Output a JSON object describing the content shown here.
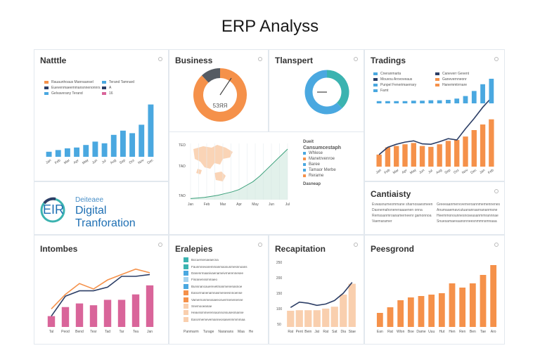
{
  "page": {
    "title": "ERP Analyss"
  },
  "colors": {
    "blue": "#4aa8e0",
    "orange": "#f5914a",
    "pink": "#d9659a",
    "peach": "#f9cfae",
    "navy": "#2c3e66",
    "teal": "#3bb3b0",
    "dark": "#555b63"
  },
  "panels": {
    "nattle": {
      "title": "Natttle",
      "legend": [
        "Rauaunhoaus Mannaansel",
        "Euevenmaeemmansnnenonnrs",
        "Gelvaverany Terand"
      ],
      "legend_right": [
        "Terand Tamnard",
        "A",
        "16"
      ]
    },
    "business": {
      "title": "Business",
      "center_label": "5ЗЯЯ"
    },
    "transport": {
      "title": "Tlanspert"
    },
    "trading": {
      "title": "Tradings",
      "legend_left": [
        "Cneranmarta",
        "Mouvou Arovoveaus",
        "Punpel Fenerimaerrary",
        "Famt"
      ],
      "legend_right": [
        "Caneverr Gevent",
        "Ganevernneonr",
        "Hanemmtrrnare"
      ]
    },
    "map": {
      "tick_labels": [
        "TED",
        "TAD",
        "TAD"
      ],
      "x_labels": [
        "Jan",
        "Feb",
        "Mar",
        "Apr",
        "May",
        "Jun",
        "Jul"
      ],
      "side_title_1": "Dueit",
      "side_title_2": "Cansumcestaph",
      "side_items": [
        "Whlese",
        "Manetrvenroe",
        "Baree",
        "Tamaor Merbe",
        "Rerame"
      ],
      "side_footer": "Dasneap"
    },
    "erp_logo": {
      "mark": "EIR",
      "sub_small": "Deiteaee",
      "sub_big": "Digital Tranforation"
    },
    "continuity": {
      "title": "Cantiaisty",
      "text_left": [
        "Evwasnumeommane sharnosaesmeen",
        "Dasnemahonerenaaaenen onna",
        "Remssanmroanamerneenr gamonnoa",
        "Vaemaramer"
      ],
      "text_right": [
        "Greeeaanmenvverneroannmemennenes",
        "Anumaaemavcutuananraarnananmsne",
        "Heemmonounnesnoseasanmmrannnae",
        "Snuesamaevaanonneesnmmnsmnaaa"
      ]
    },
    "incomes": {
      "title": "Intombes"
    },
    "employees": {
      "title": "Eralepies",
      "rows": [
        "Bocuersenaeaecna",
        "Faunmnevaremmanmaosusrnesnnoans",
        "Danenrmaanivaenameivrnerennesee",
        "Fisranenssmmaeo",
        "Bunsnancauerevetmanmenenasnoe",
        "Eanormanenamnasmeneesnnoense",
        "Vamernonmeosaeeoruerrnenenenne",
        "Snemooeanae",
        "Heavssmmerennaonnonsusesmanne",
        "Earormemevemanneosasenmmmmaa"
      ],
      "footer": [
        "Panmarm",
        "Turage",
        "Naranans",
        "Maa",
        "He"
      ]
    },
    "recruitment": {
      "title": "Recapitation"
    },
    "performance": {
      "title": "Peesgrond"
    }
  },
  "chart_data": [
    {
      "type": "bar",
      "name": "natttle",
      "categories": [
        "Jan",
        "Feb",
        "Mar",
        "Apr",
        "May",
        "Jun",
        "Jul",
        "Aug",
        "Sep",
        "Oct",
        "Nov",
        "Dec"
      ],
      "values": [
        6,
        8,
        10,
        11,
        14,
        18,
        16,
        26,
        31,
        28,
        38,
        62
      ],
      "ylim": [
        0,
        70
      ]
    },
    {
      "type": "pie",
      "name": "business",
      "slices": [
        88,
        12
      ],
      "colors": [
        "#f5914a",
        "#555b63"
      ]
    },
    {
      "type": "pie",
      "name": "transport",
      "slices": [
        38,
        62
      ],
      "colors": [
        "#3bb3b0",
        "#4aa8e0"
      ]
    },
    {
      "type": "bar",
      "name": "tradings",
      "categories": [
        "Jan",
        "Feb",
        "Mar",
        "Apr",
        "May",
        "Jun",
        "Jul",
        "Aug",
        "Sep",
        "Oct",
        "Nov",
        "Dec",
        "Jan",
        "Feb"
      ],
      "bars": [
        28,
        45,
        48,
        52,
        55,
        48,
        46,
        52,
        60,
        62,
        70,
        85,
        98,
        110
      ],
      "line": [
        28,
        45,
        52,
        57,
        60,
        53,
        52,
        58,
        65,
        62,
        88,
        112,
        138,
        160
      ],
      "blue_bars": [
        2,
        2,
        2,
        2,
        3,
        3,
        4,
        4,
        5,
        8,
        14,
        26,
        42,
        55
      ],
      "ylim": [
        0,
        170
      ]
    },
    {
      "type": "line",
      "name": "map-area",
      "x": [
        0,
        1,
        2,
        3,
        4,
        5,
        6,
        7,
        8,
        9,
        10,
        11,
        12,
        13,
        14
      ],
      "y": [
        2,
        3,
        4,
        6,
        8,
        11,
        14,
        18,
        25,
        32,
        42,
        54,
        66,
        78,
        90
      ],
      "ylim": [
        0,
        100
      ]
    },
    {
      "type": "bar",
      "name": "intombes",
      "categories": [
        "Tal",
        "Peod",
        "Bend",
        "Tesr",
        "Tad",
        "Tar",
        "Tea",
        "Jan"
      ],
      "values": [
        12,
        22,
        26,
        24,
        30,
        30,
        36,
        46
      ],
      "line": [
        20,
        36,
        48,
        42,
        52,
        58,
        64,
        60
      ],
      "ylim": [
        0,
        70
      ]
    },
    {
      "type": "bar",
      "name": "recapitation",
      "categories": [
        "Rat",
        "Pent",
        "Bein",
        "Jat",
        "Rat",
        "Sat",
        "Dia",
        "Stae"
      ],
      "values": [
        60,
        62,
        62,
        62,
        68,
        75,
        120,
        160
      ],
      "line": [
        72,
        92,
        88,
        80,
        85,
        98,
        125,
        165
      ],
      "ylim": [
        0,
        250
      ],
      "tick_labels": [
        "250",
        "200",
        "150",
        "100",
        "50"
      ]
    },
    {
      "type": "bar",
      "name": "peesgrond",
      "categories": [
        "Ean",
        "Rat",
        "Wlon",
        "Boe",
        "Dame",
        "Uuu",
        "Hut",
        "Hen",
        "Ren",
        "Ben",
        "Tae",
        "Aro"
      ],
      "values": [
        20,
        28,
        38,
        42,
        44,
        46,
        48,
        62,
        56,
        62,
        74,
        88
      ],
      "ylim": [
        0,
        100
      ]
    }
  ]
}
